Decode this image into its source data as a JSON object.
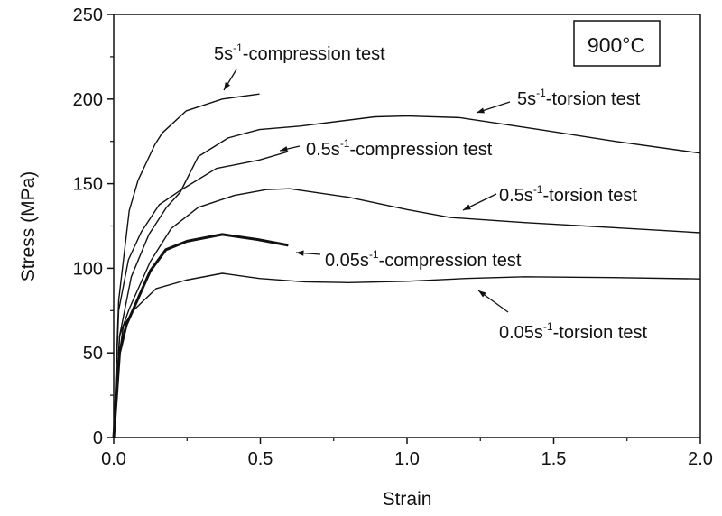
{
  "chart_data": {
    "type": "line",
    "title": "",
    "xlabel": "Strain",
    "ylabel": "Stress (MPa)",
    "xlim": [
      0,
      2.0
    ],
    "ylim": [
      0,
      250
    ],
    "xticks": [
      "0.0",
      "0.5",
      "1.0",
      "1.5",
      "2.0"
    ],
    "yticks": [
      "0",
      "50",
      "100",
      "150",
      "200",
      "250"
    ],
    "grid": false,
    "inset_label": "900°C",
    "line_color": "#111111",
    "series": [
      {
        "name": "5s-1-compression test",
        "rate": "5s",
        "sup": "-1",
        "test": "-compression test",
        "x": [
          0,
          0.017,
          0.053,
          0.083,
          0.14,
          0.166,
          0.247,
          0.37,
          0.497
        ],
        "y": [
          0,
          81,
          134,
          152,
          173,
          180,
          193,
          200,
          203
        ]
      },
      {
        "name": "5s-1-torsion test",
        "rate": "5s",
        "sup": "-1",
        "test": "-torsion test",
        "x": [
          0,
          0.02,
          0.06,
          0.12,
          0.18,
          0.227,
          0.288,
          0.39,
          0.497,
          0.635,
          0.89,
          1.0,
          1.18,
          1.45,
          1.71,
          2.0
        ],
        "y": [
          0,
          60,
          95,
          120,
          136,
          145,
          166,
          177,
          182,
          184,
          189.5,
          190,
          189,
          182,
          175,
          168
        ]
      },
      {
        "name": "0.5s-1-compression test",
        "rate": "0.5s",
        "sup": "-1",
        "test": "-compression test",
        "x": [
          0,
          0.017,
          0.05,
          0.094,
          0.155,
          0.227,
          0.35,
          0.497,
          0.595
        ],
        "y": [
          0,
          75,
          105,
          121.5,
          137.5,
          146,
          159,
          164,
          169
        ]
      },
      {
        "name": "0.5s-1-torsion test",
        "rate": "0.5s",
        "sup": "-1",
        "test": "-torsion test",
        "x": [
          0,
          0.02,
          0.053,
          0.125,
          0.196,
          0.288,
          0.41,
          0.52,
          0.6,
          0.8,
          1.0,
          1.147,
          1.4,
          1.71,
          2.0
        ],
        "y": [
          0,
          60,
          76,
          104,
          123.5,
          136,
          143,
          146.5,
          147,
          142,
          134.7,
          130,
          127,
          124,
          121
        ]
      },
      {
        "name": "0.05s-1-compression test",
        "rate": "0.05s",
        "sup": "-1",
        "test": "-compression test",
        "x": [
          0,
          0.02,
          0.043,
          0.125,
          0.178,
          0.25,
          0.37,
          0.49,
          0.595
        ],
        "y": [
          0,
          50,
          66.5,
          98.5,
          111,
          116,
          120,
          117,
          113.6
        ]
      },
      {
        "name": "0.05s-1-torsion test",
        "rate": "0.05s",
        "sup": "-1",
        "test": "-torsion test",
        "x": [
          0,
          0.02,
          0.033,
          0.07,
          0.145,
          0.247,
          0.37,
          0.497,
          0.65,
          0.8,
          1.0,
          1.2,
          1.4,
          1.7,
          2.0
        ],
        "y": [
          0,
          50,
          66,
          75.6,
          88,
          93,
          97,
          94,
          92,
          91.5,
          92.3,
          94,
          95,
          94.5,
          93.7
        ]
      }
    ]
  }
}
